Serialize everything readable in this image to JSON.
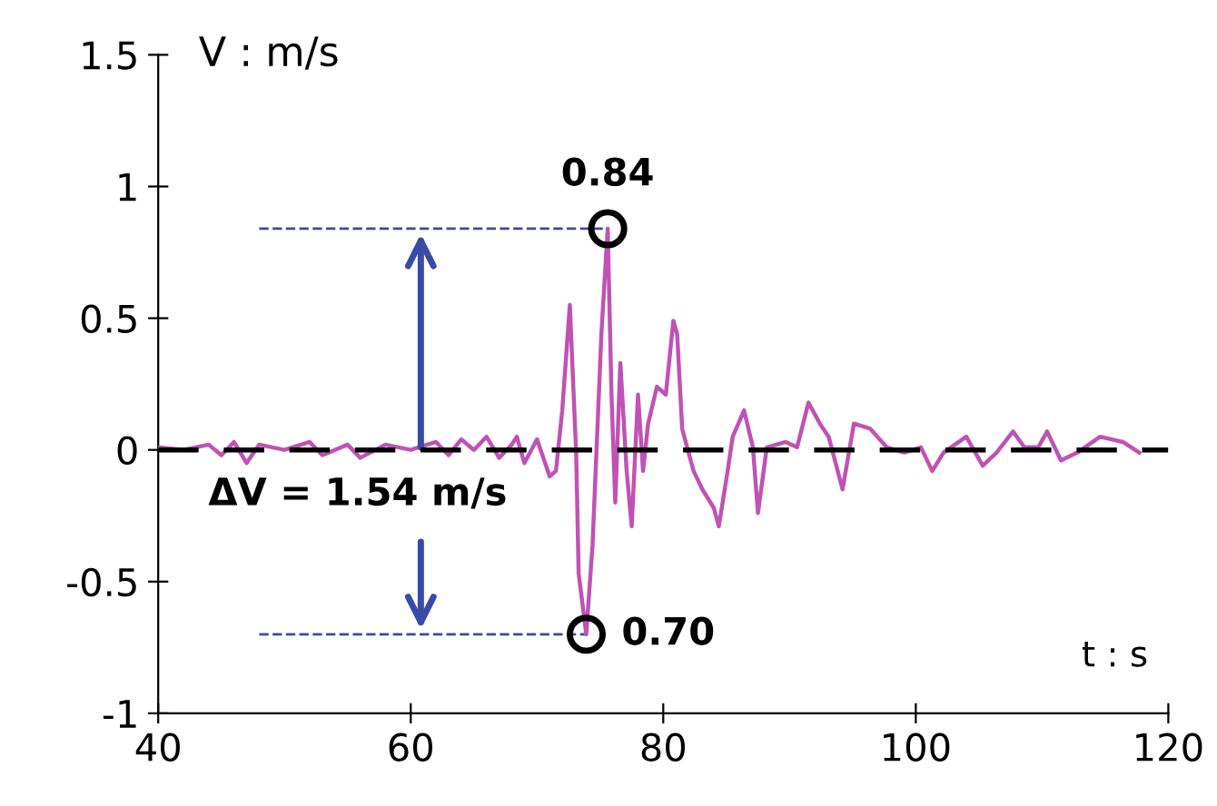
{
  "chart_data": {
    "type": "line",
    "ylabel": "V : m/s",
    "xlabel": "t : s",
    "xlim": [
      40,
      120
    ],
    "xticks": [
      40,
      60,
      80,
      100,
      120
    ],
    "ylim": [
      -1,
      1.5
    ],
    "yticks": [
      -1,
      -0.5,
      0,
      0.5,
      1,
      1.5
    ],
    "grid": false,
    "legend": false,
    "marker": "none",
    "line_style": "solid",
    "series": [
      {
        "color": "#c052b4",
        "x": [
          40,
          42,
          44,
          45,
          46,
          47,
          48,
          50,
          52,
          53,
          55,
          56,
          58,
          60,
          62,
          63,
          64,
          65,
          66,
          67,
          68,
          68.4,
          69,
          70,
          71,
          71.5,
          72.0,
          72.6,
          73.1,
          73.3,
          73.9,
          74.4,
          75.1,
          75.6,
          75.9,
          76.2,
          76.6,
          77.1,
          77.5,
          78.0,
          78.4,
          78.8,
          79.5,
          80.2,
          80.8,
          81.1,
          81.5,
          82.0,
          82.4,
          83.1,
          84.0,
          84.4,
          85.1,
          85.5,
          86.4,
          87.1,
          87.5,
          88.2,
          89.7,
          90.6,
          91.5,
          92.4,
          93.1,
          94.2,
          95.1,
          96.4,
          97.7,
          99.1,
          100.4,
          101.3,
          102.2,
          104.0,
          105.3,
          106.4,
          107.7,
          108.6,
          109.7,
          110.4,
          111.5,
          112.8,
          114.6,
          116.4,
          117.7
        ],
        "values": [
          0.01,
          0.0,
          0.02,
          -0.02,
          0.03,
          -0.05,
          0.02,
          0.0,
          0.03,
          -0.02,
          0.02,
          -0.03,
          0.02,
          0.0,
          0.03,
          -0.02,
          0.04,
          0.0,
          0.05,
          -0.03,
          0.02,
          0.05,
          -0.05,
          0.04,
          -0.1,
          -0.08,
          0.15,
          0.55,
          -0.01,
          -0.47,
          -0.7,
          -0.36,
          0.44,
          0.84,
          0.21,
          -0.2,
          0.33,
          -0.08,
          -0.29,
          0.21,
          -0.08,
          0.1,
          0.24,
          0.21,
          0.49,
          0.44,
          0.08,
          -0.01,
          -0.08,
          -0.15,
          -0.22,
          -0.29,
          -0.08,
          0.05,
          0.15,
          0.01,
          -0.24,
          0.01,
          0.03,
          0.01,
          0.18,
          0.1,
          0.05,
          -0.15,
          0.1,
          0.08,
          0.01,
          -0.01,
          0.01,
          -0.08,
          -0.01,
          0.05,
          -0.06,
          -0.01,
          0.07,
          0.01,
          0.01,
          0.07,
          -0.04,
          -0.01,
          0.05,
          0.03,
          -0.01
        ]
      }
    ],
    "ref_lines": [
      {
        "axis": "y",
        "value": 0,
        "color": "#000000",
        "line_style": "dashed"
      }
    ],
    "annotations": [
      {
        "text": "0.84",
        "x": 75.6,
        "y": 0.84
      },
      {
        "text": "0.70",
        "x": 73.9,
        "y": -0.7
      },
      "ΔV = 1.54 m/s"
    ]
  }
}
